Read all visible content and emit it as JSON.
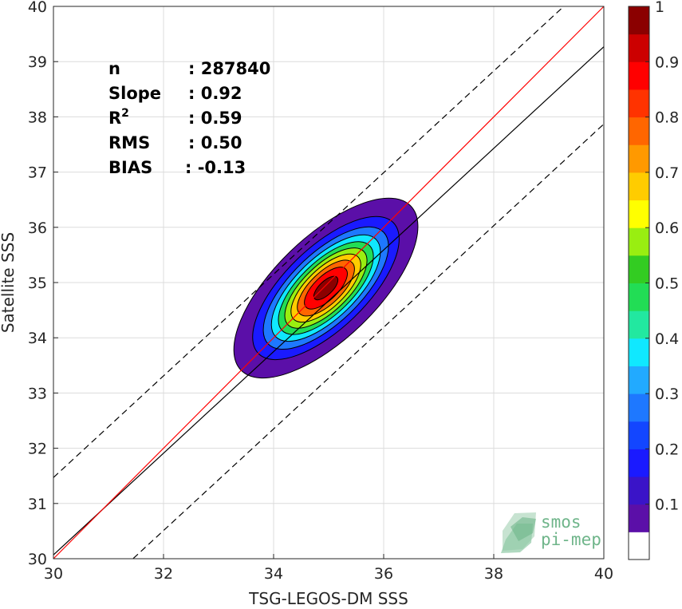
{
  "chart_data": {
    "type": "density-scatter",
    "xlabel": "TSG-LEGOS-DM SSS",
    "ylabel": "Satellite SSS",
    "xlim": [
      30,
      40
    ],
    "ylim": [
      30,
      40
    ],
    "xticks": [
      30,
      32,
      34,
      36,
      38,
      40
    ],
    "yticks": [
      30,
      31,
      32,
      33,
      34,
      35,
      36,
      37,
      38,
      39,
      40
    ],
    "grid": true,
    "stats": [
      {
        "name": "n",
        "value": ": 287840"
      },
      {
        "name": "Slope",
        "value": ": 0.92"
      },
      {
        "name": "R",
        "sup": "2",
        "value": ": 0.59"
      },
      {
        "name": "RMS",
        "value": ": 0.50"
      },
      {
        "name": "BIAS",
        "value": ": -0.13"
      }
    ],
    "lines": {
      "identity": {
        "slope": 1.0,
        "intercept": 0.0,
        "color": "#ff0000"
      },
      "fit": {
        "slope": 0.92,
        "intercept": 2.47,
        "color": "#000000"
      },
      "upper_bound": {
        "slope": 0.92,
        "intercept": 3.87,
        "style": "dashed"
      },
      "lower_bound": {
        "slope": 0.92,
        "intercept": 1.07,
        "style": "dashed"
      }
    },
    "density": {
      "center": [
        34.95,
        34.9
      ],
      "peak_value": 1.0,
      "levels": [
        0.05,
        0.15,
        0.25,
        0.35,
        0.45,
        0.55,
        0.65,
        0.75,
        0.85,
        0.95
      ]
    },
    "colorbar": {
      "ticks": [
        "0.1",
        "0.2",
        "0.3",
        "0.4",
        "0.5",
        "0.6",
        "0.7",
        "0.8",
        "0.9",
        "1"
      ],
      "colors": [
        "#ffffff",
        "#5b0fa8",
        "#3a14c8",
        "#1a1aff",
        "#1346ff",
        "#1e78ff",
        "#22aaff",
        "#10e8ff",
        "#22e8a0",
        "#22dd55",
        "#33cc22",
        "#99ee11",
        "#ffff00",
        "#ffcc00",
        "#ff9900",
        "#ff6600",
        "#ff3300",
        "#ff0000",
        "#cc0000",
        "#8b0000"
      ]
    }
  },
  "watermark": {
    "line1": "smos",
    "line2": "pi-mep"
  }
}
